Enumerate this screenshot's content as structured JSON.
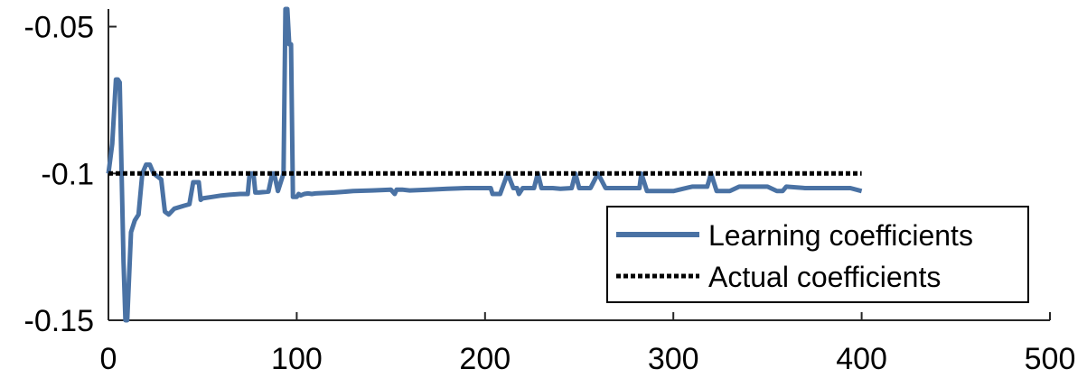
{
  "chart_data": {
    "type": "line",
    "xlim": [
      0,
      500
    ],
    "ylim": [
      -0.15,
      -0.044
    ],
    "x_ticks": [
      0,
      100,
      200,
      300,
      400,
      500
    ],
    "x_tick_labels": [
      "0",
      "100",
      "200",
      "300",
      "400",
      "500"
    ],
    "y_ticks": [
      -0.15,
      -0.1,
      -0.05
    ],
    "y_tick_labels": [
      "-0.15",
      "-0.1",
      "-0.05"
    ],
    "grid": false,
    "legend": {
      "placement": "bottom-right",
      "entries": [
        "Learning coefficients",
        "Actual coefficients"
      ]
    },
    "series": [
      {
        "name": "Learning coefficients",
        "color": "#4a72a4",
        "style": "solid",
        "x": [
          0,
          2,
          4,
          5,
          6,
          7,
          8,
          9,
          10,
          11,
          12,
          14,
          16,
          18,
          20,
          22,
          24,
          26,
          28,
          30,
          32,
          35,
          40,
          43,
          45,
          46,
          48,
          49,
          50,
          55,
          60,
          65,
          70,
          74,
          75,
          77,
          78,
          80,
          85,
          87,
          88,
          90,
          93,
          94,
          95,
          96,
          97,
          98,
          100,
          101,
          102,
          104,
          106,
          108,
          110,
          120,
          130,
          140,
          150,
          152,
          153,
          156,
          160,
          170,
          180,
          190,
          200,
          203,
          204,
          208,
          212,
          215,
          217,
          218,
          220,
          226,
          228,
          230,
          232,
          236,
          240,
          246,
          248,
          250,
          252,
          256,
          260,
          264,
          268,
          270,
          274,
          280,
          282,
          283,
          286,
          290,
          294,
          300,
          310,
          318,
          320,
          323,
          330,
          335,
          337,
          340,
          350,
          355,
          358,
          360,
          370,
          380,
          390,
          392,
          394,
          400
        ],
        "y": [
          -0.1,
          -0.09,
          -0.068,
          -0.068,
          -0.069,
          -0.1,
          -0.13,
          -0.15,
          -0.15,
          -0.135,
          -0.12,
          -0.116,
          -0.114,
          -0.1,
          -0.097,
          -0.097,
          -0.1,
          -0.101,
          -0.102,
          -0.113,
          -0.114,
          -0.112,
          -0.111,
          -0.1105,
          -0.103,
          -0.103,
          -0.103,
          -0.109,
          -0.1085,
          -0.108,
          -0.1075,
          -0.1072,
          -0.107,
          -0.107,
          -0.1,
          -0.1,
          -0.1065,
          -0.1065,
          -0.1062,
          -0.1,
          -0.1,
          -0.106,
          -0.1,
          -0.044,
          -0.044,
          -0.056,
          -0.056,
          -0.108,
          -0.108,
          -0.107,
          -0.1075,
          -0.107,
          -0.1068,
          -0.107,
          -0.1068,
          -0.1065,
          -0.106,
          -0.1058,
          -0.1055,
          -0.107,
          -0.1055,
          -0.1055,
          -0.1058,
          -0.1055,
          -0.1052,
          -0.105,
          -0.105,
          -0.105,
          -0.107,
          -0.107,
          -0.1,
          -0.105,
          -0.105,
          -0.107,
          -0.105,
          -0.105,
          -0.1,
          -0.105,
          -0.105,
          -0.105,
          -0.1052,
          -0.105,
          -0.1,
          -0.105,
          -0.105,
          -0.105,
          -0.1,
          -0.105,
          -0.105,
          -0.105,
          -0.105,
          -0.105,
          -0.105,
          -0.1,
          -0.106,
          -0.106,
          -0.106,
          -0.106,
          -0.1045,
          -0.1045,
          -0.1,
          -0.106,
          -0.106,
          -0.1045,
          -0.1045,
          -0.1045,
          -0.1045,
          -0.106,
          -0.106,
          -0.1045,
          -0.105,
          -0.105,
          -0.105,
          -0.105,
          -0.105,
          -0.106
        ]
      },
      {
        "name": "Actual coefficients",
        "color": "#000000",
        "style": "dotted",
        "x": [
          0,
          400
        ],
        "y": [
          -0.1,
          -0.1
        ]
      }
    ]
  }
}
